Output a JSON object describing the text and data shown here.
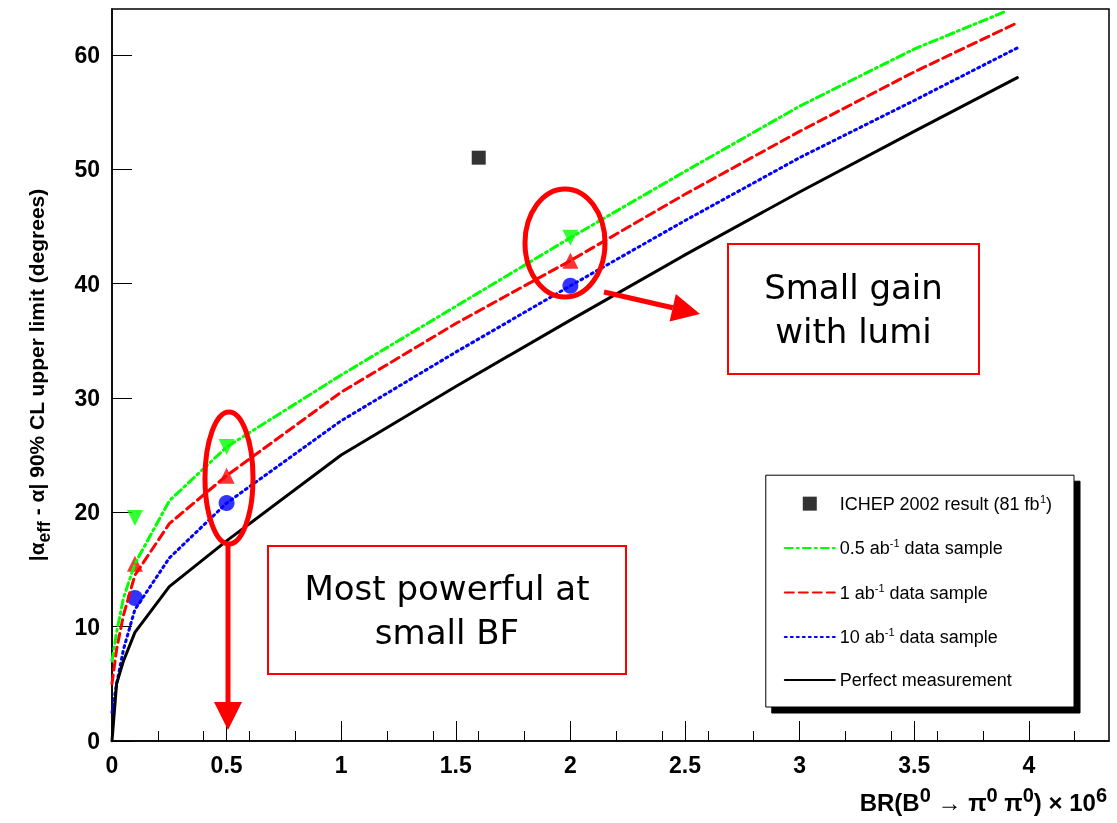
{
  "chart_data": {
    "type": "line",
    "xlabel": "BR(B$^{0}$ → π$^{0}$ π$^{0}$) × 10$^{6}$",
    "ylabel": "|α$_{eff}$ - α| 90% CL upper limit (degrees)",
    "xlim": [
      0,
      4.35
    ],
    "xticks": [
      0,
      0.5,
      1,
      1.5,
      2,
      2.5,
      3,
      3.5,
      4
    ],
    "ylim": [
      0,
      64
    ],
    "yticks": [
      0,
      10,
      20,
      30,
      40,
      50,
      60
    ],
    "grid": false,
    "legend": "bottom right",
    "marker": "none",
    "x": [
      0,
      0.02,
      0.05,
      0.1,
      0.25,
      0.5,
      1,
      1.5,
      2,
      2.5,
      3,
      3.5,
      3.95
    ],
    "series": [
      {
        "name": "ICHEP 2002 result (81 fb$^{1}$)",
        "type": "scatter",
        "marker": "square",
        "color": "#000000",
        "x": [
          1.6
        ],
        "values": [
          51
        ]
      },
      {
        "name": "0.5 ab$^{-1}$ data sample",
        "color": "#00ff00",
        "line_style": "dashdot",
        "x": [
          0,
          0.02,
          0.05,
          0.1,
          0.25,
          0.5,
          1,
          1.5,
          2,
          2.5,
          3,
          3.5,
          3.9
        ],
        "values": [
          7,
          9.5,
          12.5,
          15.5,
          21,
          25.7,
          32,
          38,
          44,
          49.8,
          55.5,
          60.5,
          63.8
        ]
      },
      {
        "type": "scatter",
        "marker": "triangle-down",
        "color": "#00ff00",
        "x": [
          0.1,
          0.5,
          2
        ],
        "values": [
          19.5,
          25.7,
          44
        ]
      },
      {
        "name": "1 ab$^{-1}$ data sample",
        "color": "#ff0000",
        "line_style": "dashed",
        "values": [
          5,
          8,
          11,
          14.5,
          19,
          23.2,
          30.5,
          36.5,
          42,
          47.8,
          53.3,
          58.5,
          62.8
        ]
      },
      {
        "type": "scatter",
        "marker": "triangle",
        "color": "#ff0000",
        "x": [
          0.1,
          0.5,
          2
        ],
        "values": [
          15.5,
          23.2,
          42
        ]
      },
      {
        "name": "10 ab$^{-1}$ data sample",
        "color": "#0000ff",
        "line_style": "dotted",
        "values": [
          2.5,
          5,
          8,
          11.5,
          16,
          20.8,
          28,
          34,
          39.8,
          45.5,
          51,
          56,
          60.6
        ]
      },
      {
        "type": "scatter",
        "marker": "circle",
        "color": "#0000ff",
        "x": [
          0.1,
          0.5,
          2
        ],
        "values": [
          12.5,
          20.8,
          39.8
        ]
      },
      {
        "name": "Perfect measurement",
        "color": "#000000",
        "line_style": "solid",
        "values": [
          0,
          5,
          7,
          9.5,
          13.5,
          17.5,
          25,
          31,
          36.8,
          42.5,
          48,
          53.3,
          58
        ]
      }
    ],
    "annotations": [
      "Small gain with lumi",
      "Most powerful at small BF"
    ]
  }
}
